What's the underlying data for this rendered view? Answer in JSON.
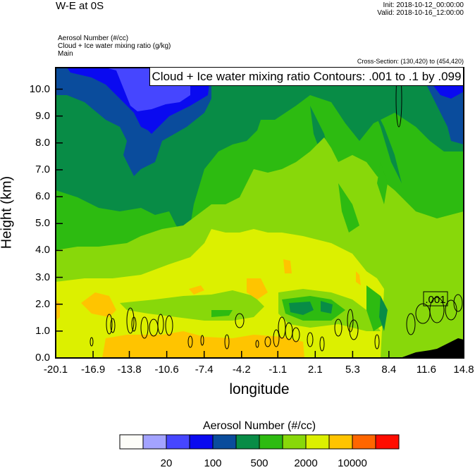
{
  "header": {
    "title": "W-E at 0S",
    "init": "Init: 2018-10-12_00:00:00",
    "valid": "Valid: 2018-10-16_12:00:00",
    "fields": [
      "Aerosol Number   (#/cc)",
      "Cloud + Ice water mixing ratio   (g/kg)",
      "Main"
    ],
    "cross_section": "Cross-Section: (130,420) to (454,420)"
  },
  "chart_data": {
    "type": "heatmap",
    "title": "W-E at 0S",
    "xlabel": "longitude",
    "ylabel": "Height (km)",
    "xlim": [
      -20.1,
      14.8
    ],
    "ylim": [
      0,
      10.8
    ],
    "x_ticks": [
      -20.1,
      -16.9,
      -13.8,
      -10.6,
      -7.4,
      -4.2,
      -1.1,
      2.1,
      5.3,
      8.4,
      11.6,
      14.8
    ],
    "x_tick_labels": [
      "-20.1",
      "-16.9",
      "-13.8",
      "-10.6",
      "-7.4",
      "-4.2",
      "-1.1",
      "2.1",
      "5.3",
      "8.4",
      "11.6",
      "14.8"
    ],
    "y_ticks": [
      0,
      1,
      2,
      3,
      4,
      5,
      6,
      7,
      8,
      9,
      10
    ],
    "y_tick_labels": [
      "0.0",
      "1.0",
      "2.0",
      "3.0",
      "4.0",
      "5.0",
      "6.0",
      "7.0",
      "8.0",
      "9.0",
      "10.0"
    ],
    "contour_title": "Cloud + Ice water mixing ratio Contours: .001 to .1 by .099",
    "contour_label": ".001",
    "filled_field": "Aerosol Number (#/cc)",
    "colorbar": {
      "title": "Aerosol Number  (#/cc)",
      "colors": [
        "#fdfdf8",
        "#a3a3ff",
        "#4646ff",
        "#0a0af0",
        "#0a4c9c",
        "#088c46",
        "#2dbb11",
        "#88d80a",
        "#dcf000",
        "#ffc400",
        "#ff6600",
        "#ff0c00"
      ],
      "labels": [
        "20",
        "100",
        "500",
        "2000",
        "10000"
      ]
    },
    "grid": false
  }
}
